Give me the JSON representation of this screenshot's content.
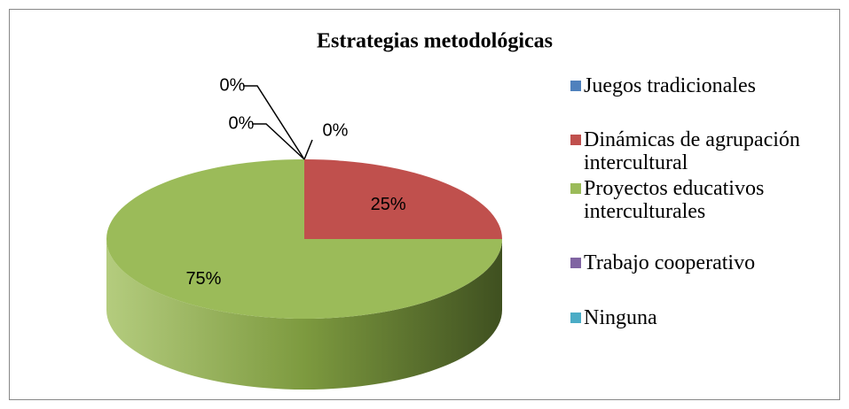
{
  "chart_data": {
    "type": "pie3d",
    "title": "Estrategias metodológicas",
    "categories": [
      "Juegos tradicionales",
      "Dinámicas de agrupación intercultural",
      "Proyectos educativos interculturales",
      "Trabajo cooperativo",
      "Ninguna"
    ],
    "values": [
      0,
      25,
      75,
      0,
      0
    ],
    "value_labels": [
      "0%",
      "25%",
      "75%",
      "0%",
      "0%"
    ],
    "colors": [
      "#4f81bd",
      "#c0504d",
      "#9bbb59",
      "#8064a2",
      "#4bacc6"
    ],
    "legend": "right"
  }
}
